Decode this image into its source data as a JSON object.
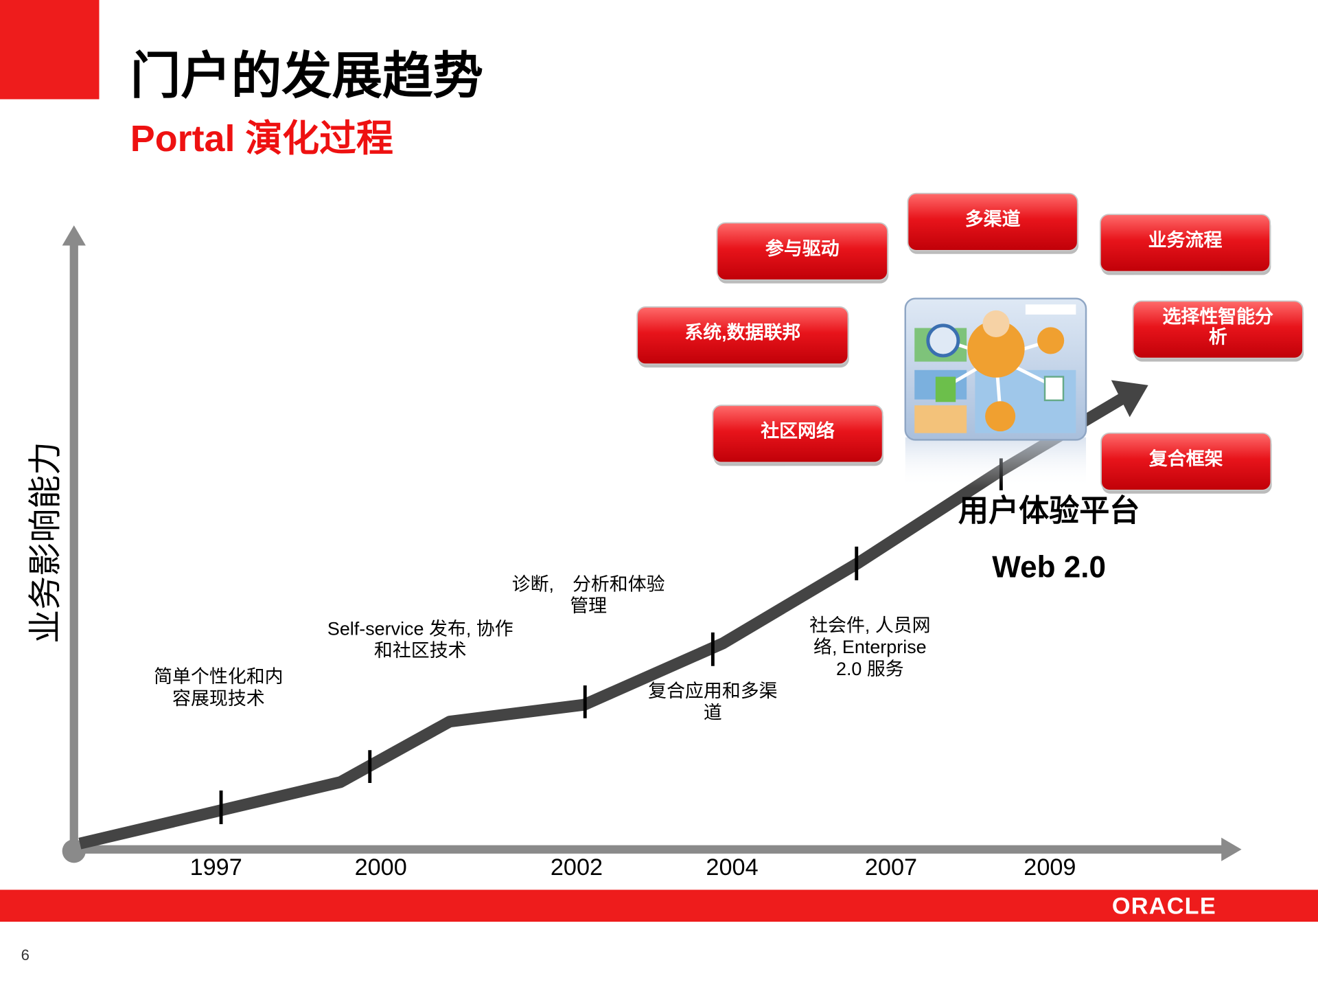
{
  "header": {
    "title": "门户的发展趋势",
    "subtitle": "Portal 演化过程"
  },
  "y_axis_label": "业务影响能力",
  "years": [
    "1997",
    "2000",
    "2002",
    "2004",
    "2007",
    "2009"
  ],
  "milestones": [
    {
      "lines": [
        "简单个性化和内",
        "容展现技术"
      ]
    },
    {
      "lines": [
        "Self-service 发布, 协作",
        "和社区技术"
      ]
    },
    {
      "lines": [
        "诊断,　分析和体验",
        "管理"
      ]
    },
    {
      "lines": [
        "复合应用和多渠",
        "道"
      ]
    },
    {
      "lines": [
        "社会件, 人员网",
        "络, Enterprise",
        "2.0 服务"
      ]
    }
  ],
  "platform": {
    "title": "用户体验平台",
    "subtitle": "Web 2.0"
  },
  "badges": [
    {
      "lines": [
        "参与驱动"
      ]
    },
    {
      "lines": [
        "多渠道"
      ]
    },
    {
      "lines": [
        "业务流程"
      ]
    },
    {
      "lines": [
        "系统,数据联邦"
      ]
    },
    {
      "lines": [
        "选择性智能分",
        "析"
      ]
    },
    {
      "lines": [
        "社区网络"
      ]
    },
    {
      "lines": [
        "复合框架"
      ]
    }
  ],
  "footer": {
    "logo": "ORACLE",
    "page_number": "6"
  }
}
